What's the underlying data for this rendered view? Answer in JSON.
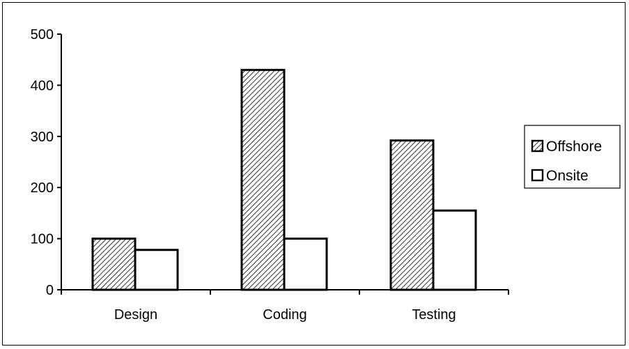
{
  "chart_data": {
    "type": "bar",
    "categories": [
      "Design",
      "Coding",
      "Testing"
    ],
    "series": [
      {
        "name": "Offshore",
        "values": [
          100,
          430,
          292
        ],
        "fill": "hatched"
      },
      {
        "name": "Onsite",
        "values": [
          78,
          100,
          155
        ],
        "fill": "white"
      }
    ],
    "title": "",
    "xlabel": "",
    "ylabel": "",
    "ylim": [
      0,
      500
    ],
    "yticks": [
      0,
      100,
      200,
      300,
      400,
      500
    ],
    "grid": false,
    "legend": "right",
    "colors": {
      "stroke": "#000000",
      "background": "#ffffff",
      "onsite_fill": "#ffffff"
    }
  }
}
